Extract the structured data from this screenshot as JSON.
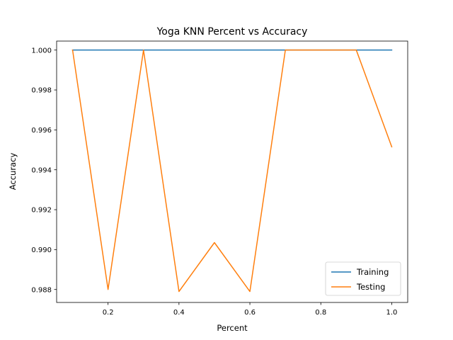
{
  "chart_data": {
    "type": "line",
    "title": "Yoga KNN Percent vs Accuracy",
    "xlabel": "Percent",
    "ylabel": "Accuracy",
    "xlim": [
      0.055,
      1.045
    ],
    "ylim": [
      0.98735,
      1.00045
    ],
    "xticks": [
      0.2,
      0.4,
      0.6,
      0.8,
      1.0
    ],
    "xtick_labels": [
      "0.2",
      "0.4",
      "0.6",
      "0.8",
      "1.0"
    ],
    "yticks": [
      0.988,
      0.99,
      0.992,
      0.994,
      0.996,
      0.998,
      1.0
    ],
    "ytick_labels": [
      "0.988",
      "0.990",
      "0.992",
      "0.994",
      "0.996",
      "0.998",
      "1.000"
    ],
    "grid": false,
    "legend_position": "lower right",
    "x": [
      0.1,
      0.2,
      0.3,
      0.4,
      0.5,
      0.6,
      0.7,
      0.8,
      0.9,
      1.0
    ],
    "series": [
      {
        "name": "Training",
        "color": "#1f77b4",
        "values": [
          1.0,
          1.0,
          1.0,
          1.0,
          1.0,
          1.0,
          1.0,
          1.0,
          1.0,
          1.0
        ]
      },
      {
        "name": "Testing",
        "color": "#ff7f0e",
        "values": [
          1.0,
          0.988,
          1.0,
          0.9879,
          0.99035,
          0.9879,
          1.0,
          1.0,
          1.0,
          0.99515
        ]
      }
    ]
  }
}
